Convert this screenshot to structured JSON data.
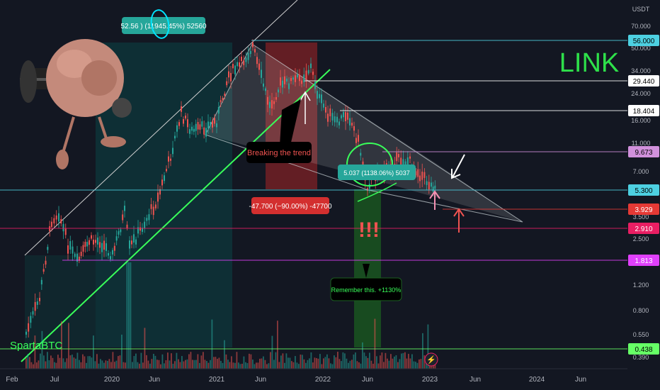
{
  "chart": {
    "symbol": "LINK",
    "currency": "USDT",
    "watermark": "SpartaBTC",
    "x_axis_labels": [
      "Feb",
      "Jul",
      "2020",
      "Jun",
      "2021",
      "Jun",
      "2022",
      "Jun",
      "2023",
      "Jun",
      "2024",
      "Jun"
    ],
    "y_axis_ticks": [
      "70.000",
      "50.000",
      "34.000",
      "24.000",
      "16.000",
      "11.000",
      "7.000",
      "3.500",
      "2.500",
      "1.200",
      "0.800",
      "0.550",
      "0.390"
    ],
    "price_lines": [
      {
        "label": "56.000",
        "color": "#4dd0e1",
        "value": 56.0
      },
      {
        "label": "29.440",
        "color": "#ffffff",
        "value": 29.44
      },
      {
        "label": "18.404",
        "color": "#ffffff",
        "value": 18.404
      },
      {
        "label": "9.673",
        "color": "#d191dc",
        "value": 9.673
      },
      {
        "label": "5.300",
        "color": "#4dd0e1",
        "value": 5.3
      },
      {
        "label": "3.929",
        "color": "#e53935",
        "value": 3.929
      },
      {
        "label": "2.910",
        "color": "#e91e63",
        "value": 2.91
      },
      {
        "label": "1.813",
        "color": "#e040fb",
        "value": 1.813
      },
      {
        "label": "0.438",
        "color": "#66ff66",
        "value": 0.438
      }
    ],
    "annotations": {
      "top_measure": "52.56 ) (11945.45%) 52560",
      "break_trend": "Breaking the trend",
      "drop_measure": "-47.700 (−90.00%) -47700",
      "bottom_measure": "5.037 (1138.06%) 5037",
      "exclaim": "!!!",
      "remember": "Remember this. +1130%"
    },
    "colors": {
      "background": "#131722",
      "up": "#26a69a",
      "down": "#ef5350",
      "trendline": "#39ff5a",
      "logo": "#2ee04a"
    }
  }
}
